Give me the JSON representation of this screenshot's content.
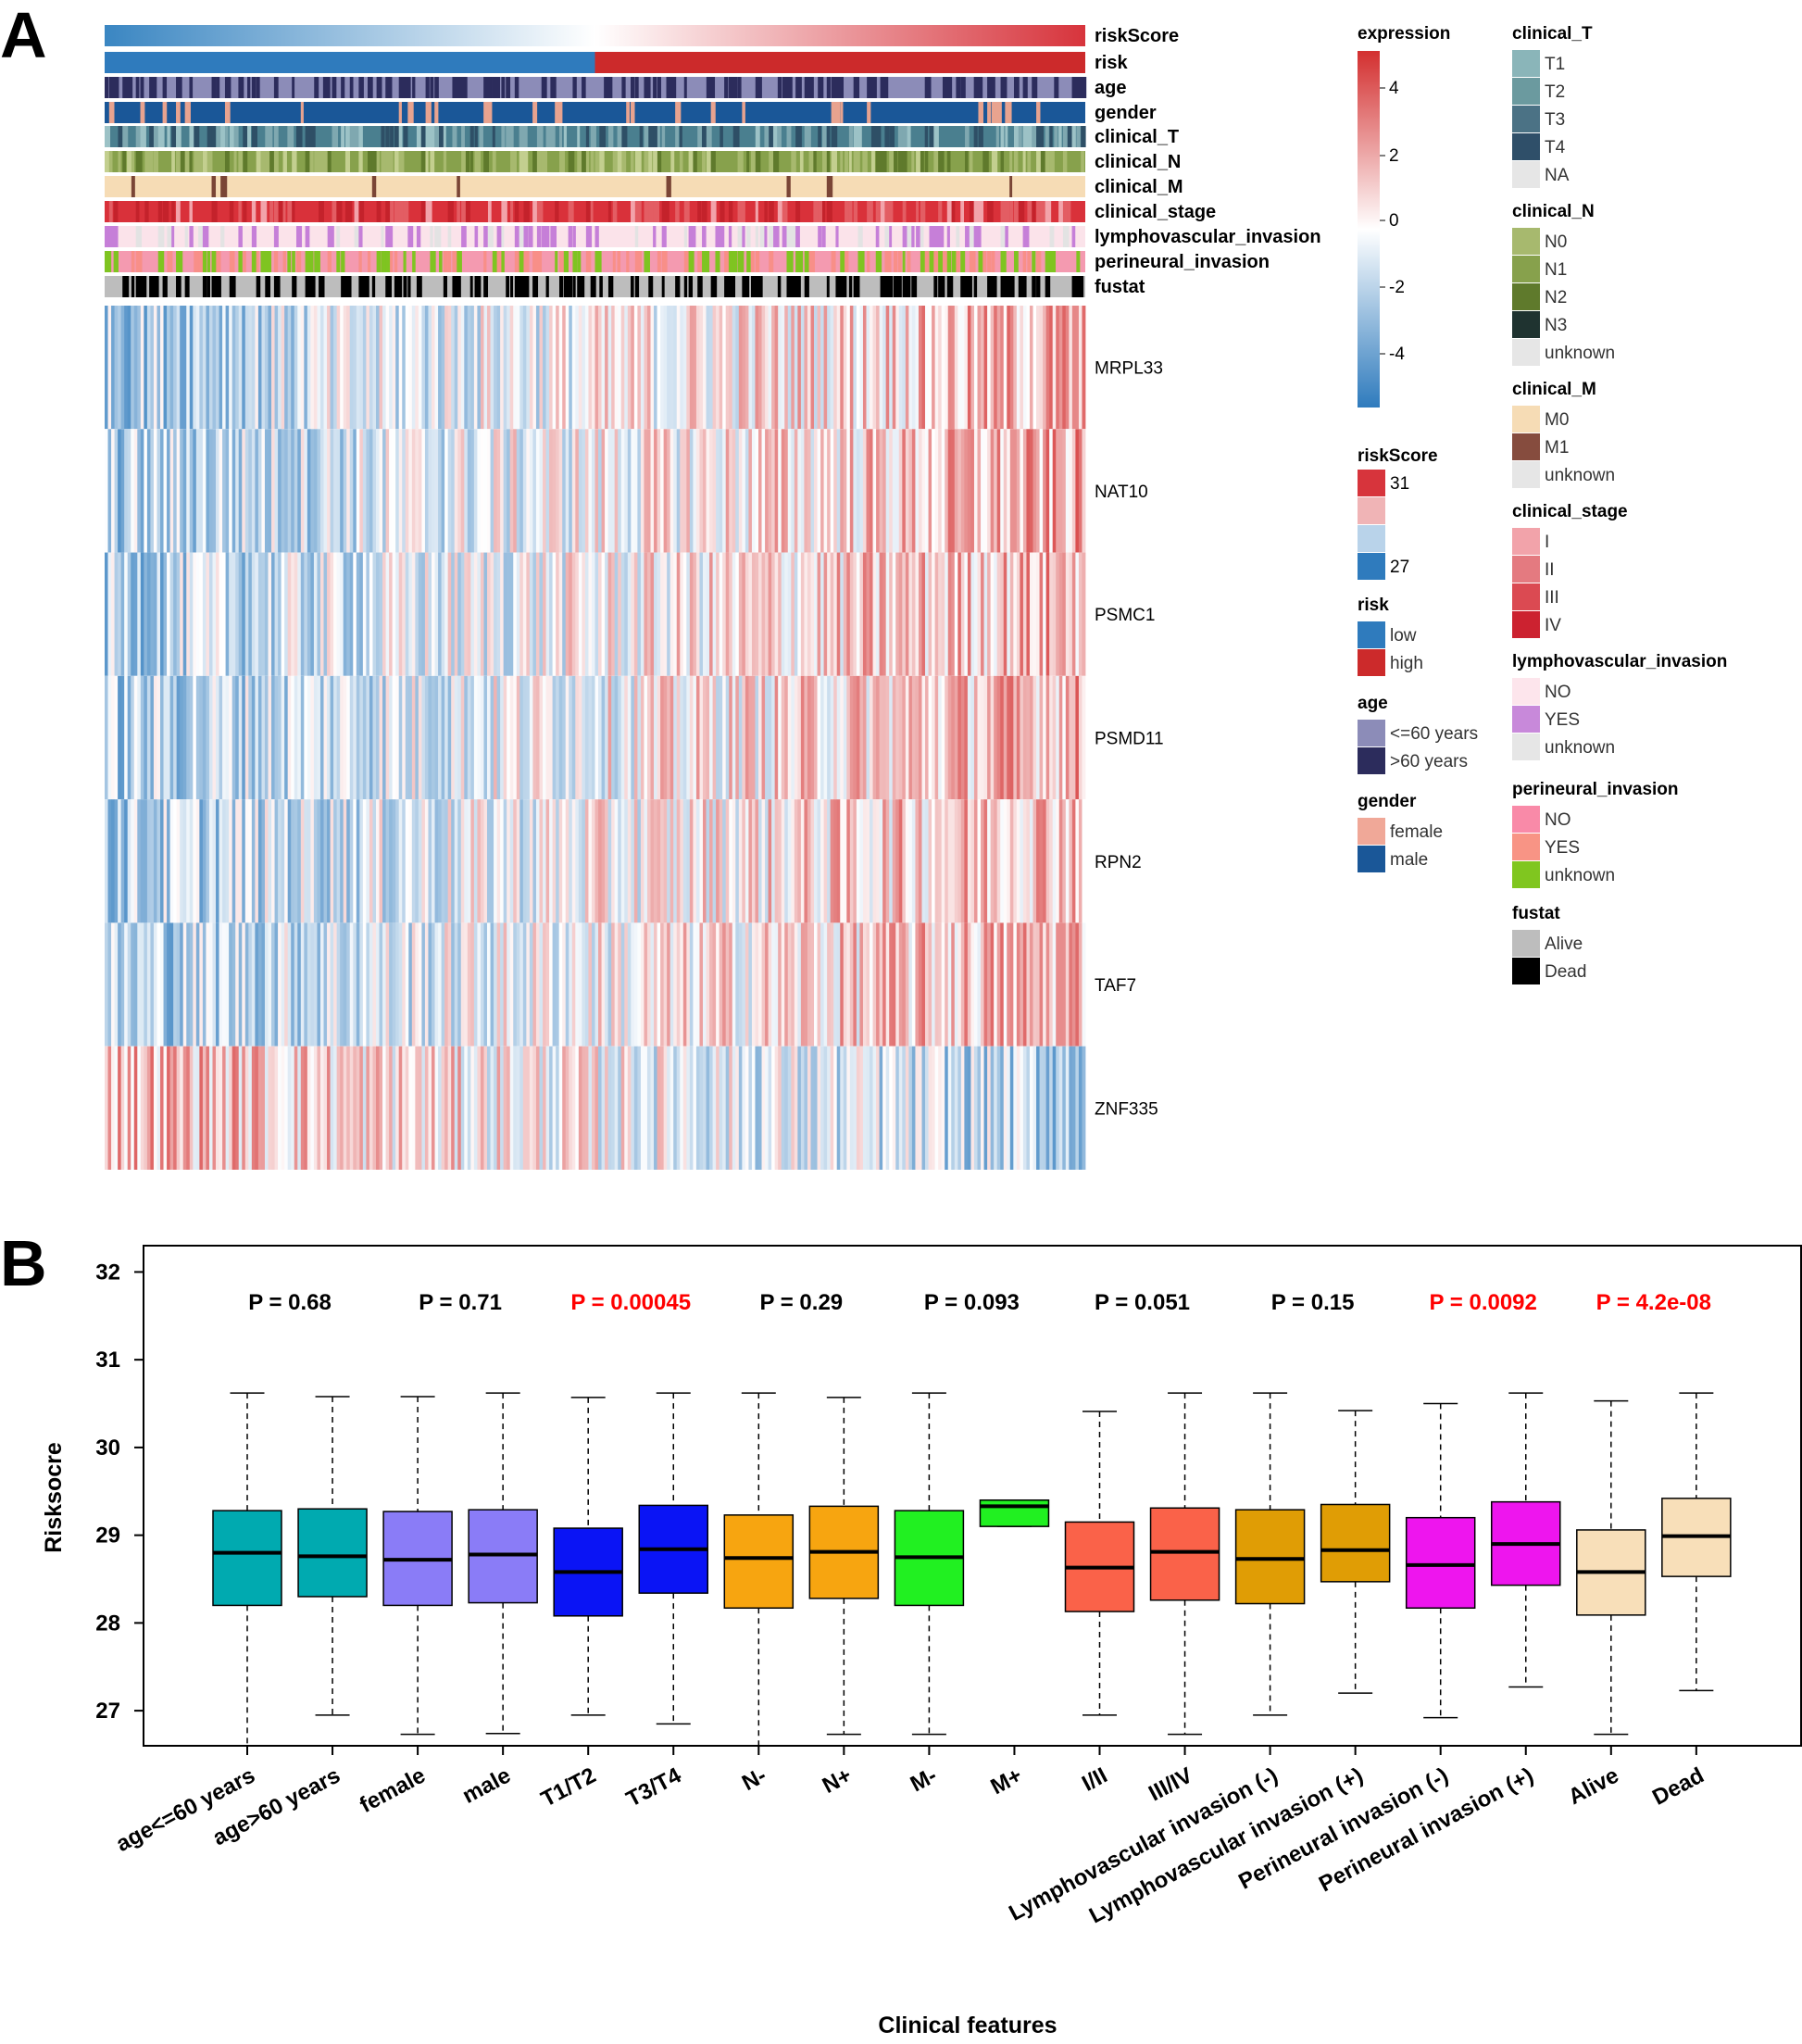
{
  "panel_a": {
    "letter": "A",
    "tracks": [
      {
        "id": "riskScore",
        "label": "riskScore",
        "kind": "gradient",
        "from": "#3a86c2",
        "to": "#d7343c"
      },
      {
        "id": "risk",
        "label": "risk",
        "kind": "split",
        "low": "#2f7bbd",
        "high": "#cc2a2b",
        "split_fraction": 0.5
      },
      {
        "id": "age",
        "label": "age",
        "kind": "random",
        "colors": [
          "#8c8cb8",
          "#2c2c5c"
        ],
        "weights": [
          0.55,
          0.45
        ]
      },
      {
        "id": "gender",
        "label": "gender",
        "kind": "random",
        "colors": [
          "#1a5798",
          "#e8a38f"
        ],
        "weights": [
          0.85,
          0.15
        ]
      },
      {
        "id": "clinical_T",
        "label": "clinical_T",
        "kind": "random",
        "colors": [
          "#4a7f8f",
          "#7fa8b0",
          "#2e4f66",
          "#9cc2c6"
        ],
        "weights": [
          0.4,
          0.2,
          0.25,
          0.15
        ]
      },
      {
        "id": "clinical_N",
        "label": "clinical_N",
        "kind": "random",
        "colors": [
          "#87a14c",
          "#a7b96e",
          "#5f7a2c",
          "#c3cf8f"
        ],
        "weights": [
          0.4,
          0.25,
          0.2,
          0.15
        ]
      },
      {
        "id": "clinical_M",
        "label": "clinical_M",
        "kind": "random",
        "colors": [
          "#f6dcb5",
          "#7a4536"
        ],
        "weights": [
          0.98,
          0.02
        ]
      },
      {
        "id": "clinical_stage",
        "label": "clinical_stage",
        "kind": "random",
        "colors": [
          "#d9313a",
          "#e35d63",
          "#f2a3aa",
          "#c4222b"
        ],
        "weights": [
          0.45,
          0.25,
          0.1,
          0.2
        ]
      },
      {
        "id": "lymphovascular_invasion",
        "label": "lymphovascular_invasion",
        "kind": "random",
        "colors": [
          "#fbe3ea",
          "#c67fd8",
          "#e3e3e3"
        ],
        "weights": [
          0.6,
          0.25,
          0.15
        ]
      },
      {
        "id": "perineural_invasion",
        "label": "perineural_invasion",
        "kind": "random",
        "colors": [
          "#f49ab0",
          "#7fc421",
          "#f88f88"
        ],
        "weights": [
          0.5,
          0.3,
          0.2
        ]
      },
      {
        "id": "fustat",
        "label": "fustat",
        "kind": "random",
        "colors": [
          "#bdbdbd",
          "#000000"
        ],
        "weights": [
          0.55,
          0.45
        ]
      }
    ],
    "genes": [
      {
        "name": "MRPL33",
        "trend": 1
      },
      {
        "name": "NAT10",
        "trend": 1
      },
      {
        "name": "PSMC1",
        "trend": 1
      },
      {
        "name": "PSMD11",
        "trend": 1
      },
      {
        "name": "RPN2",
        "trend": 1
      },
      {
        "name": "TAF7",
        "trend": 1
      },
      {
        "name": "ZNF335",
        "trend": -1
      }
    ],
    "legend_expression": {
      "title": "expression",
      "ticks": [
        "4",
        "2",
        "0",
        "-2",
        "-4"
      ]
    },
    "legend_riskscore": {
      "title": "riskScore",
      "top_label": "31",
      "bottom_label": "27",
      "colors": [
        "#d7343c",
        "#f0b4b6",
        "#b9d3ea",
        "#2f7bbd"
      ]
    },
    "legend_left_groups": [
      {
        "title": "risk",
        "items": [
          {
            "label": "low",
            "color": "#2f7bbd"
          },
          {
            "label": "high",
            "color": "#cc2a2b"
          }
        ]
      },
      {
        "title": "age",
        "items": [
          {
            "label": "<=60 years",
            "color": "#8c8cb8"
          },
          {
            "label": ">60 years",
            "color": "#2c2c5c"
          }
        ]
      },
      {
        "title": "gender",
        "items": [
          {
            "label": "female",
            "color": "#f0a898"
          },
          {
            "label": "male",
            "color": "#1a5798"
          }
        ]
      }
    ],
    "legend_right_groups": [
      {
        "title": "clinical_T",
        "items": [
          {
            "label": "T1",
            "color": "#8ab5b9"
          },
          {
            "label": "T2",
            "color": "#6b9a9f"
          },
          {
            "label": "T3",
            "color": "#4b7285"
          },
          {
            "label": "T4",
            "color": "#2f4f69"
          },
          {
            "label": "NA",
            "color": "#e6e6e6"
          }
        ]
      },
      {
        "title": "clinical_N",
        "items": [
          {
            "label": "N0",
            "color": "#a7b96e"
          },
          {
            "label": "N1",
            "color": "#87a14c"
          },
          {
            "label": "N2",
            "color": "#5f7a2c"
          },
          {
            "label": "N3",
            "color": "#1f3330"
          },
          {
            "label": "unknown",
            "color": "#e6e6e6"
          }
        ]
      },
      {
        "title": "clinical_M",
        "items": [
          {
            "label": "M0",
            "color": "#f6dcb5"
          },
          {
            "label": "M1",
            "color": "#864c3e"
          },
          {
            "label": "unknown",
            "color": "#e6e6e6"
          }
        ]
      },
      {
        "title": "clinical_stage",
        "items": [
          {
            "label": "I",
            "color": "#f2a3aa"
          },
          {
            "label": "II",
            "color": "#e47a80"
          },
          {
            "label": "III",
            "color": "#db4a52"
          },
          {
            "label": "IV",
            "color": "#cc2230"
          }
        ]
      },
      {
        "title": "lymphovascular_invasion",
        "items": [
          {
            "label": "NO",
            "color": "#fde5ec"
          },
          {
            "label": "YES",
            "color": "#c889da"
          },
          {
            "label": "unknown",
            "color": "#e6e6e6"
          }
        ]
      },
      {
        "title": "perineural_invasion",
        "items": [
          {
            "label": "NO",
            "color": "#f98aa8"
          },
          {
            "label": "YES",
            "color": "#f89485"
          },
          {
            "label": "unknown",
            "color": "#80c61f"
          }
        ]
      },
      {
        "title": "fustat",
        "items": [
          {
            "label": "Alive",
            "color": "#bdbdbd"
          },
          {
            "label": "Dead",
            "color": "#000000"
          }
        ]
      }
    ]
  },
  "panel_b": {
    "letter": "B"
  },
  "chart_data": {
    "type": "boxplot",
    "title": "",
    "xlabel": "Clinical features",
    "ylabel": "Risksocre",
    "ylim": [
      26.6,
      32.3
    ],
    "yticks": [
      27,
      28,
      29,
      30,
      31,
      32
    ],
    "categories": [
      "age<=60 years",
      "age>60 years",
      "female",
      "male",
      "T1/T2",
      "T3/T4",
      "N-",
      "N+",
      "M-",
      "M+",
      "I/II",
      "III/IV",
      "Lymphovascular invasion (-)",
      "Lymphovascular invasion (+)",
      "Perineural invasion (-)",
      "Perineural invasion (+)",
      "Alive",
      "Dead"
    ],
    "boxes": [
      {
        "min": 26.6,
        "q1": 28.2,
        "median": 28.8,
        "q3": 29.28,
        "max": 30.62,
        "color": "#00aab0"
      },
      {
        "min": 26.95,
        "q1": 28.3,
        "median": 28.76,
        "q3": 29.3,
        "max": 30.58,
        "color": "#00aab0"
      },
      {
        "min": 26.73,
        "q1": 28.2,
        "median": 28.72,
        "q3": 29.27,
        "max": 30.58,
        "color": "#8a7cf7"
      },
      {
        "min": 26.74,
        "q1": 28.23,
        "median": 28.78,
        "q3": 29.29,
        "max": 30.62,
        "color": "#8a7cf7"
      },
      {
        "min": 26.95,
        "q1": 28.08,
        "median": 28.58,
        "q3": 29.08,
        "max": 30.57,
        "color": "#0a14f5"
      },
      {
        "min": 26.85,
        "q1": 28.34,
        "median": 28.84,
        "q3": 29.34,
        "max": 30.62,
        "color": "#0a14f5"
      },
      {
        "min": 26.6,
        "q1": 28.17,
        "median": 28.74,
        "q3": 29.23,
        "max": 30.62,
        "color": "#f7a510"
      },
      {
        "min": 26.73,
        "q1": 28.28,
        "median": 28.81,
        "q3": 29.33,
        "max": 30.57,
        "color": "#f7a510"
      },
      {
        "min": 26.73,
        "q1": 28.2,
        "median": 28.75,
        "q3": 29.28,
        "max": 30.62,
        "color": "#21f021"
      },
      {
        "min": 29.1,
        "q1": 29.1,
        "median": 29.33,
        "q3": 29.4,
        "max": 29.4,
        "color": "#21f021"
      },
      {
        "min": 26.95,
        "q1": 28.13,
        "median": 28.63,
        "q3": 29.15,
        "max": 30.41,
        "color": "#fa6249"
      },
      {
        "min": 26.73,
        "q1": 28.26,
        "median": 28.81,
        "q3": 29.31,
        "max": 30.62,
        "color": "#fa6249"
      },
      {
        "min": 26.95,
        "q1": 28.22,
        "median": 28.73,
        "q3": 29.29,
        "max": 30.62,
        "color": "#e09d05"
      },
      {
        "min": 27.2,
        "q1": 28.47,
        "median": 28.83,
        "q3": 29.35,
        "max": 30.42,
        "color": "#e09d05"
      },
      {
        "min": 26.92,
        "q1": 28.17,
        "median": 28.66,
        "q3": 29.2,
        "max": 30.5,
        "color": "#ee15ee"
      },
      {
        "min": 27.27,
        "q1": 28.43,
        "median": 28.9,
        "q3": 29.38,
        "max": 30.62,
        "color": "#ee15ee"
      },
      {
        "min": 26.73,
        "q1": 28.09,
        "median": 28.58,
        "q3": 29.06,
        "max": 30.53,
        "color": "#f8dfb9"
      },
      {
        "min": 27.23,
        "q1": 28.53,
        "median": 28.99,
        "q3": 29.42,
        "max": 30.62,
        "color": "#f8dfb9"
      }
    ],
    "pvalues": [
      {
        "text": "P = 0.68",
        "significant": false
      },
      {
        "text": "P = 0.71",
        "significant": false
      },
      {
        "text": "P = 0.00045",
        "significant": true
      },
      {
        "text": "P = 0.29",
        "significant": false
      },
      {
        "text": "P = 0.093",
        "significant": false
      },
      {
        "text": "P = 0.051",
        "significant": false
      },
      {
        "text": "P = 0.15",
        "significant": false
      },
      {
        "text": "P = 0.0092",
        "significant": true
      },
      {
        "text": "P = 4.2e-08",
        "significant": true
      }
    ],
    "significant_color": "#ff0000"
  }
}
